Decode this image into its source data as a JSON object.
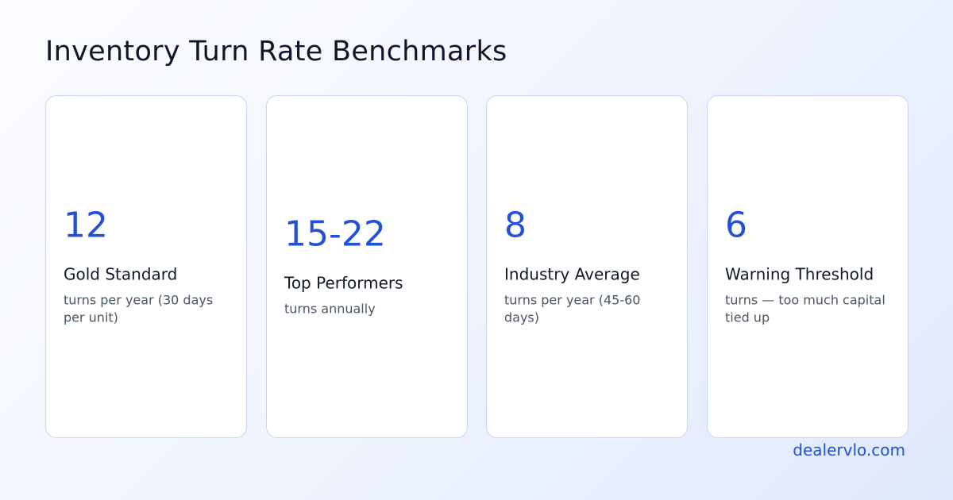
{
  "title": "Inventory Turn Rate Benchmarks",
  "accent_color": "#2250d6",
  "cards": [
    {
      "value": "12",
      "label": "Gold Standard",
      "description": "turns per year (30 days per unit)"
    },
    {
      "value": "15-22",
      "label": "Top Performers",
      "description": "turns annually"
    },
    {
      "value": "8",
      "label": "Industry Average",
      "description": "turns per year (45-60 days)"
    },
    {
      "value": "6",
      "label": "Warning Threshold",
      "description": "turns — too much capital tied up"
    }
  ],
  "footer": {
    "brand": "dealervlo.com"
  }
}
